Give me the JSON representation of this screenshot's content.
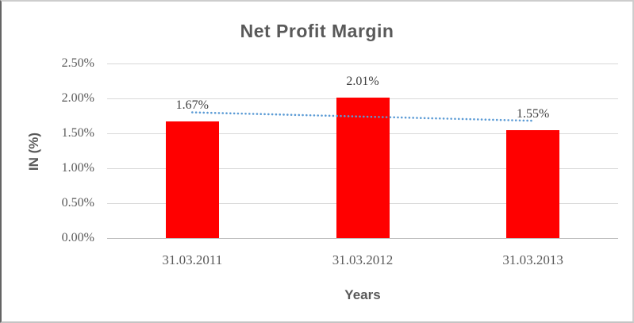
{
  "chart_data": {
    "type": "bar",
    "title": "Net Profit Margin",
    "xlabel": "Years",
    "ylabel": "IN (%)",
    "categories": [
      "31.03.2011",
      "31.03.2012",
      "31.03.2013"
    ],
    "values": [
      1.67,
      2.01,
      1.55
    ],
    "data_labels": [
      "1.67%",
      "2.01%",
      "1.55%"
    ],
    "ylim": [
      0,
      2.5
    ],
    "ytick_step": 0.5,
    "ytick_labels": [
      "0.00%",
      "0.50%",
      "1.00%",
      "1.50%",
      "2.00%",
      "2.50%"
    ],
    "grid": true,
    "legend_position": "none",
    "bar_color": "#ff0000",
    "trendline": {
      "type": "linear",
      "style": "dotted",
      "color": "#5b9bd5",
      "start_value": 1.8,
      "end_value": 1.68
    },
    "colors": {
      "title": "#595959",
      "axis_title": "#595959",
      "tick_label": "#595959",
      "data_label": "#404040",
      "gridline": "#d9d9d9",
      "axis_line": "#bfbfbf"
    }
  }
}
